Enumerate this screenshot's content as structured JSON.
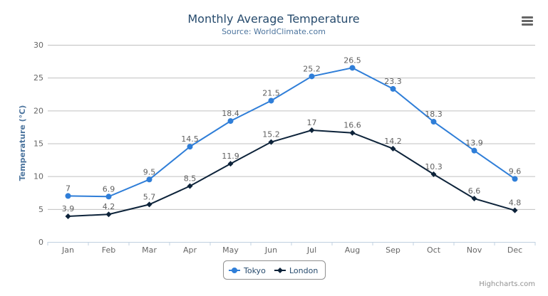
{
  "chart_data": {
    "type": "line",
    "title": "Monthly Average Temperature",
    "subtitle": "Source: WorldClimate.com",
    "xlabel": "",
    "ylabel": "Temperature (°C)",
    "categories": [
      "Jan",
      "Feb",
      "Mar",
      "Apr",
      "May",
      "Jun",
      "Jul",
      "Aug",
      "Sep",
      "Oct",
      "Nov",
      "Dec"
    ],
    "ylim": [
      0,
      30
    ],
    "yticks": [
      0,
      5,
      10,
      15,
      20,
      25,
      30
    ],
    "grid": true,
    "legend_position": "bottom",
    "data_labels": true,
    "series": [
      {
        "name": "Tokyo",
        "color": "#2f7ed8",
        "marker": "circle",
        "values": [
          7.0,
          6.9,
          9.5,
          14.5,
          18.4,
          21.5,
          25.2,
          26.5,
          23.3,
          18.3,
          13.9,
          9.6
        ]
      },
      {
        "name": "London",
        "color": "#0d233a",
        "marker": "diamond",
        "values": [
          3.9,
          4.2,
          5.7,
          8.5,
          11.9,
          15.2,
          17.0,
          16.6,
          14.2,
          10.3,
          6.6,
          4.8
        ]
      }
    ]
  },
  "credits": "Highcharts.com",
  "menu_icon": "hamburger-menu-icon"
}
